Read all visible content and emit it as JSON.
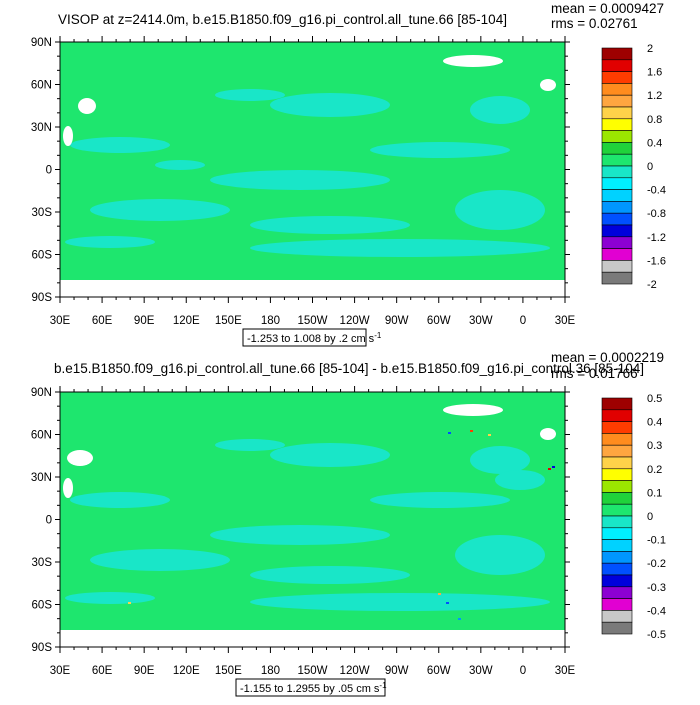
{
  "colors": {
    "map_fill": "#1ee66e",
    "anomaly_fill": "#19e6c8",
    "no_data": "#ffffff",
    "frame": "#000000"
  },
  "chart_data": [
    {
      "type": "heatmap",
      "title": "VISOP at z=2414.0m, b.e15.B1850.f09_g16.pi_control.all_tune.66 [85-104]",
      "stats": {
        "mean": "mean = 0.0009427",
        "rms": "rms = 0.02761"
      },
      "xlabel": "",
      "ylabel": "",
      "x_ticks": [
        "30E",
        "60E",
        "90E",
        "120E",
        "150E",
        "180",
        "150W",
        "120W",
        "90W",
        "60W",
        "30W",
        "0",
        "30E"
      ],
      "y_ticks": [
        "90N",
        "60N",
        "30N",
        "0",
        "30S",
        "60S",
        "90S"
      ],
      "xlim": [
        30,
        390
      ],
      "ylim": [
        -90,
        90
      ],
      "contour_info": "-1.253 to 1.008 by .2 cm s",
      "contour_unit_exp": "-1",
      "colorbar": {
        "labels": [
          "2",
          "1.6",
          "1.2",
          "0.8",
          "0.4",
          "0",
          "-0.4",
          "-0.8",
          "-1.2",
          "-1.6",
          "-2"
        ],
        "colors": [
          "#9e0000",
          "#e10000",
          "#ff3c00",
          "#ff8c1e",
          "#ffa640",
          "#ffd24a",
          "#ffff00",
          "#9be600",
          "#20d23b",
          "#1ee66e",
          "#19e6c8",
          "#00f0ff",
          "#00d2ff",
          "#0096ff",
          "#0050ff",
          "#0000dc",
          "#8c00d2",
          "#e100d2",
          "#c8c8c8",
          "#7a7a7a"
        ]
      }
    },
    {
      "type": "heatmap",
      "title": "b.e15.B1850.f09_g16.pi_control.all_tune.66 [85-104] - b.e15.B1850.f09_g16.pi_control.36 [85-104]",
      "stats": {
        "mean": "mean = 0.0002219",
        "rms": "rms = 0.01766"
      },
      "xlabel": "",
      "ylabel": "",
      "x_ticks": [
        "30E",
        "60E",
        "90E",
        "120E",
        "150E",
        "180",
        "150W",
        "120W",
        "90W",
        "60W",
        "30W",
        "0",
        "30E"
      ],
      "y_ticks": [
        "90N",
        "60N",
        "30N",
        "0",
        "30S",
        "60S",
        "90S"
      ],
      "xlim": [
        30,
        390
      ],
      "ylim": [
        -90,
        90
      ],
      "contour_info": "-1.155 to 1.2955 by .05 cm s",
      "contour_unit_exp": "-1",
      "colorbar": {
        "labels": [
          "0.5",
          "0.4",
          "0.3",
          "0.2",
          "0.1",
          "0",
          "-0.1",
          "-0.2",
          "-0.3",
          "-0.4",
          "-0.5"
        ],
        "colors": [
          "#9e0000",
          "#e10000",
          "#ff3c00",
          "#ff8c1e",
          "#ffa640",
          "#ffd24a",
          "#ffff00",
          "#9be600",
          "#20d23b",
          "#1ee66e",
          "#19e6c8",
          "#00f0ff",
          "#00d2ff",
          "#0096ff",
          "#0050ff",
          "#0000dc",
          "#8c00d2",
          "#e100d2",
          "#c8c8c8",
          "#7a7a7a"
        ]
      }
    }
  ]
}
